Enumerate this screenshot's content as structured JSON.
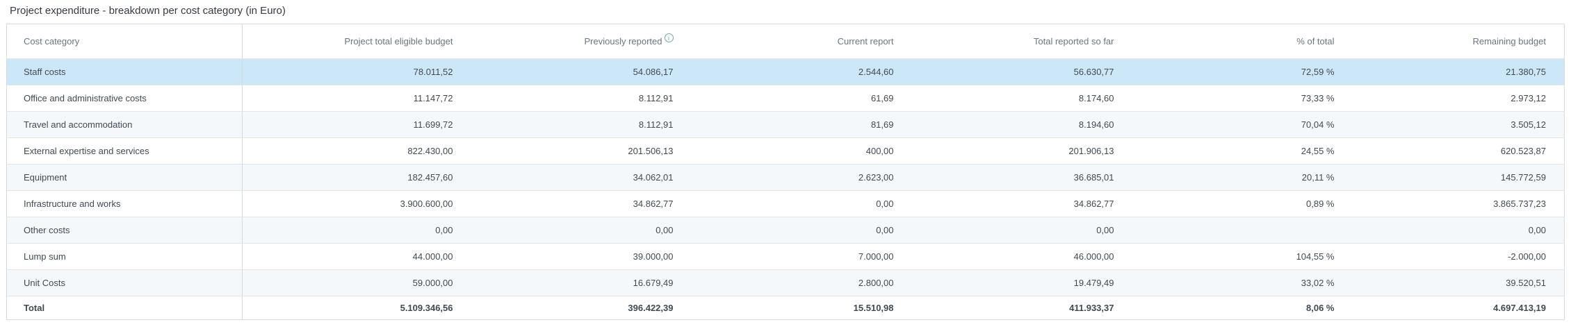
{
  "title": "Project expenditure - breakdown per cost category (in Euro)",
  "table": {
    "columns": [
      "Cost category",
      "Project total eligible budget",
      "Previously reported",
      "Current report",
      "Total reported so far",
      "% of total",
      "Remaining budget"
    ],
    "info_icon_glyph": "i",
    "rows": [
      {
        "category": "Staff costs",
        "budget": "78.011,52",
        "previously_reported": "54.086,17",
        "current_report": "2.544,60",
        "total_reported": "56.630,77",
        "percent_of_total": "72,59 %",
        "remaining": "21.380,75",
        "highlighted": true
      },
      {
        "category": "Office and administrative costs",
        "budget": "11.147,72",
        "previously_reported": "8.112,91",
        "current_report": "61,69",
        "total_reported": "8.174,60",
        "percent_of_total": "73,33 %",
        "remaining": "2.973,12",
        "highlighted": false
      },
      {
        "category": "Travel and accommodation",
        "budget": "11.699,72",
        "previously_reported": "8.112,91",
        "current_report": "81,69",
        "total_reported": "8.194,60",
        "percent_of_total": "70,04 %",
        "remaining": "3.505,12",
        "highlighted": false
      },
      {
        "category": "External expertise and services",
        "budget": "822.430,00",
        "previously_reported": "201.506,13",
        "current_report": "400,00",
        "total_reported": "201.906,13",
        "percent_of_total": "24,55 %",
        "remaining": "620.523,87",
        "highlighted": false
      },
      {
        "category": "Equipment",
        "budget": "182.457,60",
        "previously_reported": "34.062,01",
        "current_report": "2.623,00",
        "total_reported": "36.685,01",
        "percent_of_total": "20,11 %",
        "remaining": "145.772,59",
        "highlighted": false
      },
      {
        "category": "Infrastructure and works",
        "budget": "3.900.600,00",
        "previously_reported": "34.862,77",
        "current_report": "0,00",
        "total_reported": "34.862,77",
        "percent_of_total": "0,89 %",
        "remaining": "3.865.737,23",
        "highlighted": false
      },
      {
        "category": "Other costs",
        "budget": "0,00",
        "previously_reported": "0,00",
        "current_report": "0,00",
        "total_reported": "0,00",
        "percent_of_total": "",
        "remaining": "0,00",
        "highlighted": false
      },
      {
        "category": "Lump sum",
        "budget": "44.000,00",
        "previously_reported": "39.000,00",
        "current_report": "7.000,00",
        "total_reported": "46.000,00",
        "percent_of_total": "104,55 %",
        "remaining": "-2.000,00",
        "highlighted": false
      },
      {
        "category": "Unit Costs",
        "budget": "59.000,00",
        "previously_reported": "16.679,49",
        "current_report": "2.800,00",
        "total_reported": "19.479,49",
        "percent_of_total": "33,02 %",
        "remaining": "39.520,51",
        "highlighted": false
      }
    ],
    "total_row": {
      "category": "Total",
      "budget": "5.109.346,56",
      "previously_reported": "396.422,39",
      "current_report": "15.510,98",
      "total_reported": "411.933,37",
      "percent_of_total": "8,06 %",
      "remaining": "4.697.413,19"
    }
  },
  "colors": {
    "highlight_row": "#cce8f8",
    "stripe_row": "#f4f8fa",
    "border": "#d6dbdf",
    "row_border": "#e2e6e9",
    "header_text": "#6b7681",
    "body_text": "#414a53",
    "title_text": "#343b42",
    "info_icon": "#74a7a1"
  }
}
